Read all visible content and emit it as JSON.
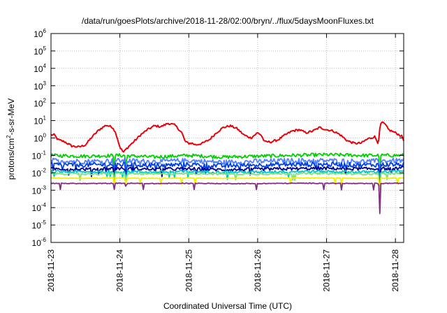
{
  "chart_data": {
    "type": "line",
    "title": "/data/run/goesPlots/archive/2018-11-28/02:00/bryn/../flux/5daysMoonFluxes.txt",
    "xlabel": "Coordinated Universal Time (UTC)",
    "ylabel": {
      "base": "protons/cm",
      "sup": "2",
      "rest": "-s-sr-MeV"
    },
    "yscale": "log",
    "ylim": [
      1e-06,
      1000000.0
    ],
    "xlim": [
      0,
      5.12
    ],
    "grid": true,
    "legend": "none",
    "y_ticks": [
      {
        "value": -6,
        "base": "10",
        "exp": "-6"
      },
      {
        "value": -5,
        "base": "10",
        "exp": "-5"
      },
      {
        "value": -4,
        "base": "10",
        "exp": "-4"
      },
      {
        "value": -3,
        "base": "10",
        "exp": "-3"
      },
      {
        "value": -2,
        "base": "10",
        "exp": "-2"
      },
      {
        "value": -1,
        "base": "10",
        "exp": "-1"
      },
      {
        "value": 0,
        "base": "10",
        "exp": "0"
      },
      {
        "value": 1,
        "base": "10",
        "exp": "1"
      },
      {
        "value": 2,
        "base": "10",
        "exp": "2"
      },
      {
        "value": 3,
        "base": "10",
        "exp": "3"
      },
      {
        "value": 4,
        "base": "10",
        "exp": "4"
      },
      {
        "value": 5,
        "base": "10",
        "exp": "5"
      },
      {
        "value": 6,
        "base": "10",
        "exp": "6"
      }
    ],
    "x_ticks": [
      {
        "value": 0,
        "label": "2018-11-23"
      },
      {
        "value": 1,
        "label": "2018-11-24"
      },
      {
        "value": 2,
        "label": "2018-11-25"
      },
      {
        "value": 3,
        "label": "2018-11-26"
      },
      {
        "value": 4,
        "label": "2018-11-27"
      },
      {
        "value": 5,
        "label": "2018-11-28"
      }
    ],
    "series": [
      {
        "color": "#e8000b",
        "x": [
          0,
          0.05,
          0.1,
          0.2,
          0.3,
          0.4,
          0.5,
          0.6,
          0.7,
          0.8,
          0.9,
          0.95,
          1.0,
          1.05,
          1.1,
          1.15,
          1.2,
          1.3,
          1.4,
          1.5,
          1.6,
          1.7,
          1.8,
          1.9,
          1.95,
          2.0,
          2.05,
          2.1,
          2.2,
          2.3,
          2.4,
          2.5,
          2.6,
          2.7,
          2.8,
          2.9,
          3.0,
          3.05,
          3.1,
          3.2,
          3.3,
          3.4,
          3.5,
          3.6,
          3.7,
          3.8,
          3.9,
          4.0,
          4.1,
          4.2,
          4.3,
          4.4,
          4.5,
          4.6,
          4.7,
          4.75,
          4.78,
          4.8,
          4.85,
          4.9,
          5.0,
          5.1,
          5.12
        ],
        "y": [
          1.5,
          1.5,
          0.8,
          0.6,
          0.35,
          0.3,
          0.4,
          1.2,
          3.0,
          5.5,
          4.0,
          1.5,
          0.3,
          0.15,
          0.25,
          0.4,
          0.6,
          1.5,
          3.0,
          5.0,
          4.5,
          7.0,
          5.5,
          2.0,
          0.6,
          0.5,
          0.5,
          0.4,
          0.5,
          0.8,
          2.0,
          4.0,
          5.0,
          3.5,
          1.5,
          1.0,
          2.0,
          1.5,
          0.6,
          0.6,
          0.8,
          1.5,
          2.5,
          3.0,
          2.0,
          2.5,
          4.0,
          3.0,
          2.5,
          1.5,
          0.7,
          0.5,
          0.5,
          0.9,
          1.2,
          0.5,
          5.0,
          8.0,
          6.0,
          3.0,
          2.0,
          1.2,
          0.7
        ]
      },
      {
        "color": "#00d000",
        "x": [
          0,
          0.5,
          1.0,
          1.5,
          2.0,
          2.5,
          3.0,
          3.5,
          4.0,
          4.5,
          5.0,
          5.12
        ],
        "y": [
          0.1,
          0.09,
          0.1,
          0.08,
          0.1,
          0.08,
          0.09,
          0.1,
          0.11,
          0.1,
          0.1,
          0.1
        ]
      },
      {
        "color": "#5080ff",
        "x": [
          0,
          0.5,
          1.0,
          1.5,
          2.0,
          2.5,
          3.0,
          3.5,
          4.0,
          4.5,
          5.0,
          5.12
        ],
        "y": [
          0.05,
          0.045,
          0.05,
          0.045,
          0.05,
          0.04,
          0.045,
          0.05,
          0.05,
          0.045,
          0.05,
          0.05
        ]
      },
      {
        "color": "#0040e0",
        "x": [
          0,
          0.5,
          1.0,
          1.5,
          2.0,
          2.5,
          3.0,
          3.5,
          4.0,
          4.5,
          5.0,
          5.12
        ],
        "y": [
          0.03,
          0.028,
          0.03,
          0.027,
          0.03,
          0.025,
          0.028,
          0.03,
          0.03,
          0.028,
          0.03,
          0.03
        ]
      },
      {
        "color": "#000090",
        "x": [
          0,
          0.5,
          1.0,
          1.5,
          2.0,
          2.5,
          3.0,
          3.5,
          4.0,
          4.5,
          5.0,
          5.12
        ],
        "y": [
          0.017,
          0.016,
          0.018,
          0.016,
          0.017,
          0.015,
          0.016,
          0.017,
          0.018,
          0.017,
          0.017,
          0.02
        ]
      },
      {
        "color": "#00c8c8",
        "x": [
          0,
          0.5,
          1.0,
          1.5,
          2.0,
          2.5,
          3.0,
          3.5,
          4.0,
          4.5,
          5.0,
          5.12
        ],
        "y": [
          0.012,
          0.011,
          0.012,
          0.011,
          0.012,
          0.011,
          0.011,
          0.012,
          0.012,
          0.011,
          0.012,
          0.012
        ]
      },
      {
        "color": "#80e080",
        "x": [
          0,
          0.5,
          1.0,
          1.5,
          2.0,
          2.5,
          3.0,
          3.5,
          4.0,
          4.5,
          5.0,
          5.12
        ],
        "y": [
          0.009,
          0.0085,
          0.009,
          0.0085,
          0.009,
          0.0085,
          0.0085,
          0.009,
          0.009,
          0.0085,
          0.009,
          0.009
        ]
      },
      {
        "color": "#f0f000",
        "x": [
          0,
          0.5,
          1.0,
          1.5,
          2.0,
          2.5,
          3.0,
          3.5,
          4.0,
          4.5,
          5.0,
          5.12
        ],
        "y": [
          0.005,
          0.0048,
          0.005,
          0.0048,
          0.005,
          0.0048,
          0.0049,
          0.005,
          0.005,
          0.0048,
          0.005,
          0.005
        ]
      },
      {
        "color": "#803080",
        "x": [
          0,
          0.5,
          1.0,
          1.5,
          2.0,
          2.5,
          3.0,
          3.5,
          4.0,
          4.5,
          5.0,
          5.12
        ],
        "y": [
          0.0025,
          0.0024,
          0.0025,
          0.0024,
          0.0025,
          0.0024,
          0.0024,
          0.0025,
          0.0025,
          0.0024,
          0.0025,
          0.0025
        ]
      }
    ],
    "dips": [
      {
        "x": 0.92,
        "y": 0.001
      },
      {
        "x": 1.09,
        "y": 0.0012
      },
      {
        "x": 4.77,
        "y": 8e-06
      }
    ]
  }
}
